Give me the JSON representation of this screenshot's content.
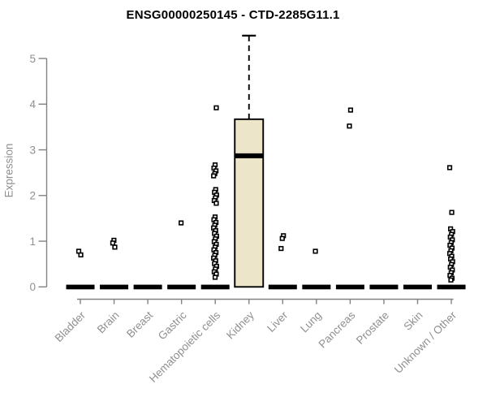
{
  "chart_data": {
    "type": "boxplot",
    "title": "ENSG00000250145 - CTD-2285G11.1",
    "ylabel": "Expression",
    "xlabel": "",
    "ylim": [
      0,
      5.5
    ],
    "yticks": [
      0,
      1,
      2,
      3,
      4,
      5
    ],
    "grid": false,
    "legend_position": "none",
    "categories": [
      "Bladder",
      "Brain",
      "Breast",
      "Gastric",
      "Hematopoietic cells",
      "Kidney",
      "Liver",
      "Lung",
      "Pancreas",
      "Prostate",
      "Skin",
      "Unknown / Other"
    ],
    "series": [
      {
        "category": "Bladder",
        "q1": 0,
        "median": 0,
        "q3": 0,
        "whisker_low": 0,
        "whisker_high": 0,
        "outliers": [
          0.78,
          0.7
        ]
      },
      {
        "category": "Brain",
        "q1": 0,
        "median": 0,
        "q3": 0,
        "whisker_low": 0,
        "whisker_high": 0,
        "outliers": [
          1.02,
          0.96,
          0.87
        ]
      },
      {
        "category": "Breast",
        "q1": 0,
        "median": 0,
        "q3": 0,
        "whisker_low": 0,
        "whisker_high": 0,
        "outliers": []
      },
      {
        "category": "Gastric",
        "q1": 0,
        "median": 0,
        "q3": 0,
        "whisker_low": 0,
        "whisker_high": 0,
        "outliers": [
          1.4
        ]
      },
      {
        "category": "Hematopoietic cells",
        "q1": 0,
        "median": 0,
        "q3": 0,
        "whisker_low": 0,
        "whisker_high": 0,
        "outliers": [
          3.92,
          2.67,
          2.6,
          2.54,
          2.48,
          2.43,
          2.13,
          2.07,
          2.01,
          1.95,
          1.89,
          1.83,
          1.53,
          1.47,
          1.41,
          1.35,
          1.29,
          1.23,
          1.17,
          1.11,
          1.05,
          0.99,
          0.93,
          0.87,
          0.81,
          0.75,
          0.69,
          0.63,
          0.57,
          0.51,
          0.45,
          0.39,
          0.33,
          0.28,
          0.21
        ]
      },
      {
        "category": "Kidney",
        "q1": 0,
        "median": 2.87,
        "q3": 3.67,
        "whisker_low": 0,
        "whisker_high": 5.5,
        "outliers": []
      },
      {
        "category": "Liver",
        "q1": 0,
        "median": 0,
        "q3": 0,
        "whisker_low": 0,
        "whisker_high": 0,
        "outliers": [
          1.12,
          1.06,
          0.84
        ]
      },
      {
        "category": "Lung",
        "q1": 0,
        "median": 0,
        "q3": 0,
        "whisker_low": 0,
        "whisker_high": 0,
        "outliers": [
          0.78
        ]
      },
      {
        "category": "Pancreas",
        "q1": 0,
        "median": 0,
        "q3": 0,
        "whisker_low": 0,
        "whisker_high": 0,
        "outliers": [
          3.87,
          3.52
        ]
      },
      {
        "category": "Prostate",
        "q1": 0,
        "median": 0,
        "q3": 0,
        "whisker_low": 0,
        "whisker_high": 0,
        "outliers": []
      },
      {
        "category": "Skin",
        "q1": 0,
        "median": 0,
        "q3": 0,
        "whisker_low": 0,
        "whisker_high": 0,
        "outliers": []
      },
      {
        "category": "Unknown / Other",
        "q1": 0,
        "median": 0,
        "q3": 0,
        "whisker_low": 0,
        "whisker_high": 0,
        "outliers": [
          2.61,
          1.63,
          1.27,
          1.21,
          1.15,
          1.09,
          1.03,
          0.97,
          0.91,
          0.85,
          0.79,
          0.73,
          0.67,
          0.61,
          0.55,
          0.49,
          0.43,
          0.37,
          0.31,
          0.25,
          0.19,
          0.15
        ]
      }
    ],
    "colors": {
      "box_fill": "#ECE5CA",
      "box_border": "#000000",
      "median": "#000000",
      "outlier": "#000000",
      "axis": "#828282",
      "tick_text": "#8f8f8f",
      "title_text": "#000000",
      "background": "#ffffff"
    }
  }
}
